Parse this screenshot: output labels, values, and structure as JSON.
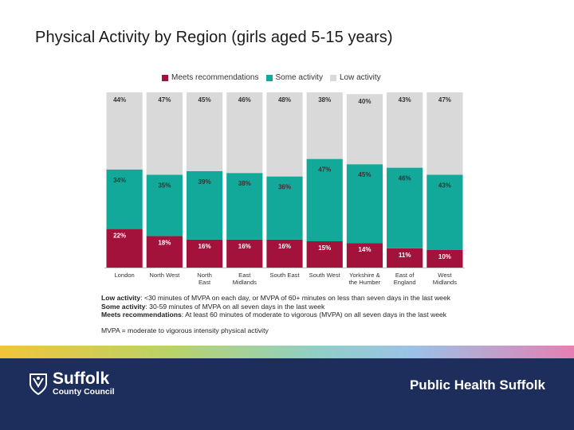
{
  "slide": {
    "title": "Physical Activity by Region (girls aged 5-15 years)"
  },
  "chart_data": {
    "type": "bar",
    "stacked": true,
    "percent": true,
    "categories": [
      [
        "London"
      ],
      [
        "North West"
      ],
      [
        "North",
        "East"
      ],
      [
        "East",
        "Midlands"
      ],
      [
        "South East"
      ],
      [
        "South West"
      ],
      [
        "Yorkshire &",
        "the Humber"
      ],
      [
        "East of",
        "England"
      ],
      [
        "West",
        "Midlands"
      ]
    ],
    "series": [
      {
        "name": "Meets recommendations",
        "color": "#a3123a",
        "values": [
          22,
          18,
          16,
          16,
          16,
          15,
          14,
          11,
          10
        ]
      },
      {
        "name": "Some activity",
        "color": "#12a99a",
        "values": [
          34,
          35,
          39,
          38,
          36,
          47,
          45,
          46,
          43
        ]
      },
      {
        "name": "Low activity",
        "color": "#d9d9d9",
        "values": [
          44,
          47,
          45,
          46,
          48,
          38,
          40,
          43,
          47
        ]
      }
    ],
    "ylim": [
      0,
      100
    ],
    "legend": "top"
  },
  "notes": {
    "low_label": "Low activity",
    "low_text": ": <30 minutes of MVPA on each day, or MVPA of 60+ minutes on less than seven days in the last week",
    "some_label": "Some activity",
    "some_text": ": 30-59 minutes of MVPA on all seven days in the last week",
    "meets_label": "Meets recommendations",
    "meets_text": ": At least 60 minutes of moderate to vigorous (MVPA) on all seven days in the last week",
    "mvpa": "MVPA = moderate to vigorous intensity physical activity"
  },
  "footer": {
    "logo_name": "Suffolk",
    "logo_sub": "County Council",
    "brand": "Public Health Suffolk",
    "bg_color": "#1e2e5c"
  }
}
